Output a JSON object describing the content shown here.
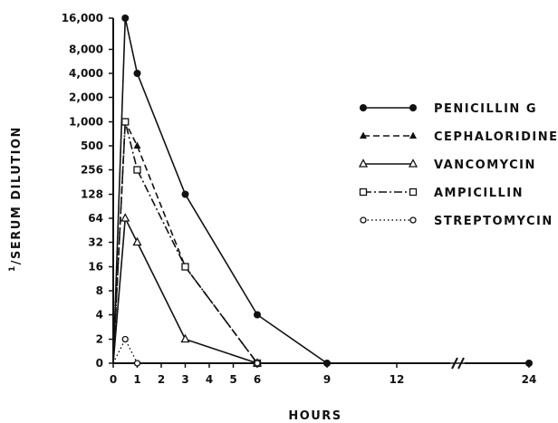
{
  "chart_data": {
    "type": "line",
    "title": "",
    "xlabel": "HOURS",
    "ylabel": "1/SERUM DILUTION",
    "ylabel_super": "1",
    "ylabel_main": "/SERUM DILUTION",
    "x_ticks": [
      0,
      1,
      2,
      3,
      4,
      5,
      6,
      9,
      12,
      24
    ],
    "x_tick_labels": [
      "0",
      "1",
      "2",
      "3",
      "4",
      "5",
      "6",
      "9",
      "12",
      "24"
    ],
    "x_axis_break": "between 12 and 24",
    "y_scale": "log2",
    "y_ticks": [
      0,
      2,
      4,
      8,
      16,
      32,
      64,
      128,
      256,
      500,
      1000,
      2000,
      4000,
      8000,
      16000
    ],
    "y_tick_labels": [
      "0",
      "2",
      "4",
      "8",
      "16",
      "32",
      "64",
      "128",
      "256",
      "500",
      "1,000",
      "2,000",
      "4,000",
      "8,000",
      "16,000"
    ],
    "grid": false,
    "legend_position": "right",
    "series": [
      {
        "name": "PENICILLIN G",
        "marker": "filled-circle",
        "line_style": "solid",
        "points": [
          [
            0,
            0
          ],
          [
            0.5,
            16000
          ],
          [
            1,
            4000
          ],
          [
            3,
            128
          ],
          [
            6,
            4
          ],
          [
            9,
            0
          ],
          [
            24,
            0
          ]
        ]
      },
      {
        "name": "CEPHALORIDINE",
        "marker": "filled-triangle",
        "line_style": "dashed",
        "points": [
          [
            0,
            0
          ],
          [
            0.5,
            1000
          ],
          [
            1,
            500
          ],
          [
            3,
            16
          ],
          [
            6,
            0
          ]
        ]
      },
      {
        "name": "VANCOMYCIN",
        "marker": "open-triangle",
        "line_style": "solid",
        "points": [
          [
            0,
            0
          ],
          [
            0.5,
            64
          ],
          [
            1,
            32
          ],
          [
            3,
            2
          ],
          [
            6,
            0
          ]
        ]
      },
      {
        "name": "AMPICILLIN",
        "marker": "open-square",
        "line_style": "dash-dot",
        "points": [
          [
            0,
            0
          ],
          [
            0.5,
            1000
          ],
          [
            1,
            256
          ],
          [
            3,
            16
          ],
          [
            6,
            0
          ]
        ]
      },
      {
        "name": "STREPTOMYCIN",
        "marker": "open-circle",
        "line_style": "dotted",
        "points": [
          [
            0,
            0
          ],
          [
            0.5,
            2
          ],
          [
            1,
            0
          ],
          [
            6,
            0
          ]
        ]
      }
    ]
  },
  "colors": {
    "ink": "#111111",
    "background": "#ffffff"
  }
}
